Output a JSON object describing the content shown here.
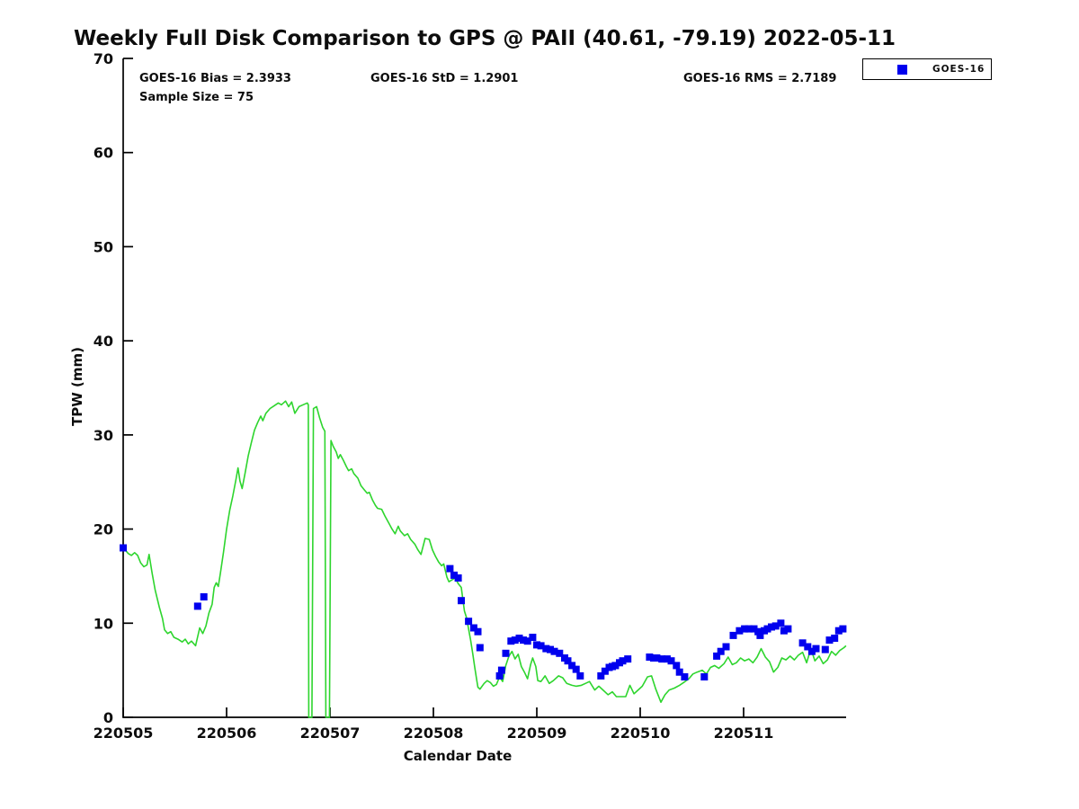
{
  "title": "Weekly Full Disk Comparison to GPS @ PAII (40.61, -79.19) 2022-05-11",
  "stats": {
    "bias": "GOES-16 Bias = 2.3933",
    "std": "GOES-16 StD = 1.2901",
    "rms": "GOES-16 RMS = 2.7189",
    "sample": "Sample Size = 75"
  },
  "legend": {
    "entries": [
      {
        "label": "GOES-16",
        "marker": "square-icon",
        "color": "#0000ee"
      }
    ]
  },
  "colors": {
    "gps_line": "#2ed52e",
    "goes_marker": "#0000ee",
    "axis": "#000000",
    "text": "#0d0d0d",
    "background": "#ffffff"
  },
  "chart_data": {
    "type": "line",
    "title": "Weekly Full Disk Comparison to GPS @ PAII (40.61, -79.19) 2022-05-11",
    "xlabel": "Calendar Date",
    "ylabel": "TPW (mm)",
    "ylim": [
      0,
      70
    ],
    "xlim": [
      4.98,
      12.0
    ],
    "grid": false,
    "legend_position": "top-right-outside",
    "y_ticks": [
      0,
      10,
      20,
      30,
      40,
      50,
      60,
      70
    ],
    "x_ticks": [
      {
        "value": 5,
        "label": "220505"
      },
      {
        "value": 6,
        "label": "220506"
      },
      {
        "value": 7,
        "label": "220507"
      },
      {
        "value": 8,
        "label": "220508"
      },
      {
        "value": 9,
        "label": "220509"
      },
      {
        "value": 10,
        "label": "220510"
      },
      {
        "value": 11,
        "label": "220511"
      }
    ],
    "series": [
      {
        "name": "GPS TPW",
        "type": "line",
        "color": "#2ed52e",
        "points": [
          [
            5.01,
            17.9
          ],
          [
            5.05,
            17.4
          ],
          [
            5.08,
            17.2
          ],
          [
            5.11,
            17.5
          ],
          [
            5.14,
            17.2
          ],
          [
            5.17,
            16.4
          ],
          [
            5.2,
            16.0
          ],
          [
            5.23,
            16.2
          ],
          [
            5.25,
            17.3
          ],
          [
            5.28,
            15.3
          ],
          [
            5.31,
            13.5
          ],
          [
            5.35,
            11.7
          ],
          [
            5.38,
            10.5
          ],
          [
            5.4,
            9.3
          ],
          [
            5.43,
            8.9
          ],
          [
            5.46,
            9.1
          ],
          [
            5.49,
            8.5
          ],
          [
            5.53,
            8.3
          ],
          [
            5.57,
            8.0
          ],
          [
            5.6,
            8.3
          ],
          [
            5.63,
            7.8
          ],
          [
            5.66,
            8.1
          ],
          [
            5.7,
            7.6
          ],
          [
            5.74,
            9.5
          ],
          [
            5.77,
            8.9
          ],
          [
            5.8,
            9.7
          ],
          [
            5.83,
            11.1
          ],
          [
            5.86,
            12.0
          ],
          [
            5.88,
            13.8
          ],
          [
            5.9,
            14.3
          ],
          [
            5.92,
            13.9
          ],
          [
            5.94,
            15.3
          ],
          [
            5.97,
            17.5
          ],
          [
            6.0,
            20.0
          ],
          [
            6.03,
            22.0
          ],
          [
            6.06,
            23.5
          ],
          [
            6.09,
            25.2
          ],
          [
            6.11,
            26.5
          ],
          [
            6.13,
            25.1
          ],
          [
            6.15,
            24.3
          ],
          [
            6.18,
            26.0
          ],
          [
            6.21,
            27.8
          ],
          [
            6.24,
            29.2
          ],
          [
            6.27,
            30.5
          ],
          [
            6.3,
            31.3
          ],
          [
            6.33,
            32.0
          ],
          [
            6.35,
            31.5
          ],
          [
            6.38,
            32.3
          ],
          [
            6.42,
            32.8
          ],
          [
            6.46,
            33.1
          ],
          [
            6.5,
            33.4
          ],
          [
            6.53,
            33.2
          ],
          [
            6.57,
            33.6
          ],
          [
            6.6,
            33.0
          ],
          [
            6.63,
            33.5
          ],
          [
            6.66,
            32.3
          ],
          [
            6.7,
            33.0
          ],
          [
            6.74,
            33.2
          ],
          [
            6.78,
            33.4
          ],
          [
            6.79,
            33.2
          ],
          [
            6.795,
            0
          ],
          [
            6.825,
            0
          ],
          [
            6.84,
            32.8
          ],
          [
            6.87,
            33.0
          ],
          [
            6.9,
            31.8
          ],
          [
            6.93,
            30.8
          ],
          [
            6.95,
            30.4
          ],
          [
            6.96,
            0
          ],
          [
            6.995,
            0
          ],
          [
            7.01,
            29.4
          ],
          [
            7.03,
            28.8
          ],
          [
            7.06,
            28.2
          ],
          [
            7.08,
            27.5
          ],
          [
            7.1,
            27.9
          ],
          [
            7.13,
            27.3
          ],
          [
            7.16,
            26.6
          ],
          [
            7.18,
            26.2
          ],
          [
            7.21,
            26.4
          ],
          [
            7.23,
            25.9
          ],
          [
            7.27,
            25.4
          ],
          [
            7.3,
            24.6
          ],
          [
            7.33,
            24.2
          ],
          [
            7.36,
            23.8
          ],
          [
            7.38,
            23.9
          ],
          [
            7.41,
            23.1
          ],
          [
            7.44,
            22.5
          ],
          [
            7.46,
            22.2
          ],
          [
            7.5,
            22.1
          ],
          [
            7.53,
            21.4
          ],
          [
            7.57,
            20.6
          ],
          [
            7.6,
            20.0
          ],
          [
            7.63,
            19.5
          ],
          [
            7.66,
            20.3
          ],
          [
            7.68,
            19.8
          ],
          [
            7.72,
            19.3
          ],
          [
            7.75,
            19.5
          ],
          [
            7.78,
            18.9
          ],
          [
            7.82,
            18.4
          ],
          [
            7.85,
            17.8
          ],
          [
            7.88,
            17.3
          ],
          [
            7.92,
            19.0
          ],
          [
            7.96,
            18.9
          ],
          [
            7.99,
            17.8
          ],
          [
            8.02,
            17.1
          ],
          [
            8.05,
            16.5
          ],
          [
            8.08,
            16.1
          ],
          [
            8.1,
            16.3
          ],
          [
            8.13,
            14.9
          ],
          [
            8.15,
            14.4
          ],
          [
            8.18,
            14.6
          ],
          [
            8.21,
            14.8
          ],
          [
            8.24,
            14.2
          ],
          [
            8.27,
            13.8
          ],
          [
            8.3,
            11.3
          ],
          [
            8.32,
            10.6
          ],
          [
            8.34,
            9.4
          ],
          [
            8.36,
            8.2
          ],
          [
            8.38,
            6.8
          ],
          [
            8.4,
            5.3
          ],
          [
            8.42,
            3.9
          ],
          [
            8.43,
            3.2
          ],
          [
            8.45,
            3.0
          ],
          [
            8.49,
            3.6
          ],
          [
            8.52,
            3.9
          ],
          [
            8.55,
            3.7
          ],
          [
            8.58,
            3.3
          ],
          [
            8.61,
            3.5
          ],
          [
            8.64,
            4.3
          ],
          [
            8.67,
            3.8
          ],
          [
            8.7,
            5.5
          ],
          [
            8.73,
            6.5
          ],
          [
            8.76,
            7.0
          ],
          [
            8.79,
            6.2
          ],
          [
            8.82,
            6.7
          ],
          [
            8.85,
            5.4
          ],
          [
            8.88,
            4.8
          ],
          [
            8.91,
            4.1
          ],
          [
            8.94,
            5.6
          ],
          [
            8.96,
            6.3
          ],
          [
            8.99,
            5.4
          ],
          [
            9.01,
            3.9
          ],
          [
            9.04,
            3.8
          ],
          [
            9.08,
            4.4
          ],
          [
            9.12,
            3.6
          ],
          [
            9.16,
            3.9
          ],
          [
            9.21,
            4.4
          ],
          [
            9.25,
            4.2
          ],
          [
            9.29,
            3.6
          ],
          [
            9.34,
            3.4
          ],
          [
            9.38,
            3.3
          ],
          [
            9.43,
            3.4
          ],
          [
            9.47,
            3.6
          ],
          [
            9.51,
            3.8
          ],
          [
            9.56,
            2.9
          ],
          [
            9.6,
            3.3
          ],
          [
            9.64,
            2.9
          ],
          [
            9.69,
            2.4
          ],
          [
            9.73,
            2.7
          ],
          [
            9.77,
            2.2
          ],
          [
            9.86,
            2.2
          ],
          [
            9.9,
            3.4
          ],
          [
            9.94,
            2.5
          ],
          [
            9.98,
            2.9
          ],
          [
            10.02,
            3.3
          ],
          [
            10.07,
            4.3
          ],
          [
            10.11,
            4.4
          ],
          [
            10.15,
            3.0
          ],
          [
            10.2,
            1.6
          ],
          [
            10.24,
            2.4
          ],
          [
            10.28,
            2.9
          ],
          [
            10.33,
            3.1
          ],
          [
            10.38,
            3.4
          ],
          [
            10.42,
            3.7
          ],
          [
            10.47,
            4.1
          ],
          [
            10.51,
            4.6
          ],
          [
            10.55,
            4.8
          ],
          [
            10.6,
            5.0
          ],
          [
            10.64,
            4.6
          ],
          [
            10.68,
            5.3
          ],
          [
            10.72,
            5.5
          ],
          [
            10.76,
            5.2
          ],
          [
            10.81,
            5.7
          ],
          [
            10.85,
            6.4
          ],
          [
            10.89,
            5.6
          ],
          [
            10.93,
            5.8
          ],
          [
            10.97,
            6.3
          ],
          [
            11.01,
            6.0
          ],
          [
            11.05,
            6.2
          ],
          [
            11.09,
            5.8
          ],
          [
            11.13,
            6.4
          ],
          [
            11.17,
            7.3
          ],
          [
            11.21,
            6.4
          ],
          [
            11.25,
            5.9
          ],
          [
            11.29,
            4.8
          ],
          [
            11.33,
            5.3
          ],
          [
            11.37,
            6.3
          ],
          [
            11.41,
            6.1
          ],
          [
            11.45,
            6.5
          ],
          [
            11.49,
            6.1
          ],
          [
            11.53,
            6.6
          ],
          [
            11.57,
            6.9
          ],
          [
            11.61,
            5.8
          ],
          [
            11.65,
            7.3
          ],
          [
            11.69,
            6.0
          ],
          [
            11.73,
            6.5
          ],
          [
            11.77,
            5.7
          ],
          [
            11.81,
            6.1
          ],
          [
            11.85,
            7.0
          ],
          [
            11.89,
            6.6
          ],
          [
            11.93,
            7.1
          ],
          [
            11.97,
            7.4
          ],
          [
            11.99,
            7.6
          ]
        ]
      },
      {
        "name": "GOES-16",
        "type": "scatter",
        "marker": "square",
        "marker_size": 8,
        "color": "#0000ee",
        "points": [
          [
            5.0,
            18.0
          ],
          [
            5.72,
            11.8
          ],
          [
            5.78,
            12.8
          ],
          [
            8.16,
            15.8
          ],
          [
            8.2,
            15.1
          ],
          [
            8.24,
            14.8
          ],
          [
            8.27,
            12.4
          ],
          [
            8.34,
            10.2
          ],
          [
            8.39,
            9.5
          ],
          [
            8.43,
            9.1
          ],
          [
            8.45,
            7.4
          ],
          [
            8.64,
            4.4
          ],
          [
            8.66,
            5.0
          ],
          [
            8.7,
            6.8
          ],
          [
            8.75,
            8.1
          ],
          [
            8.79,
            8.2
          ],
          [
            8.83,
            8.4
          ],
          [
            8.87,
            8.2
          ],
          [
            8.91,
            8.1
          ],
          [
            8.96,
            8.5
          ],
          [
            9.0,
            7.7
          ],
          [
            9.04,
            7.6
          ],
          [
            9.09,
            7.3
          ],
          [
            9.13,
            7.2
          ],
          [
            9.17,
            7.0
          ],
          [
            9.22,
            6.8
          ],
          [
            9.27,
            6.3
          ],
          [
            9.3,
            6.0
          ],
          [
            9.34,
            5.5
          ],
          [
            9.38,
            5.1
          ],
          [
            9.42,
            4.4
          ],
          [
            9.62,
            4.4
          ],
          [
            9.66,
            4.9
          ],
          [
            9.7,
            5.3
          ],
          [
            9.73,
            5.4
          ],
          [
            9.76,
            5.5
          ],
          [
            9.8,
            5.8
          ],
          [
            9.83,
            6.0
          ],
          [
            9.88,
            6.2
          ],
          [
            10.09,
            6.4
          ],
          [
            10.13,
            6.3
          ],
          [
            10.16,
            6.3
          ],
          [
            10.21,
            6.2
          ],
          [
            10.26,
            6.2
          ],
          [
            10.3,
            6.0
          ],
          [
            10.35,
            5.5
          ],
          [
            10.38,
            4.8
          ],
          [
            10.43,
            4.3
          ],
          [
            10.62,
            4.3
          ],
          [
            10.74,
            6.5
          ],
          [
            10.78,
            7.0
          ],
          [
            10.83,
            7.5
          ],
          [
            10.9,
            8.7
          ],
          [
            10.96,
            9.2
          ],
          [
            11.01,
            9.4
          ],
          [
            11.05,
            9.4
          ],
          [
            11.1,
            9.4
          ],
          [
            11.14,
            9.1
          ],
          [
            11.16,
            8.7
          ],
          [
            11.2,
            9.2
          ],
          [
            11.23,
            9.4
          ],
          [
            11.27,
            9.6
          ],
          [
            11.31,
            9.7
          ],
          [
            11.36,
            10.0
          ],
          [
            11.39,
            9.2
          ],
          [
            11.43,
            9.4
          ],
          [
            11.57,
            7.9
          ],
          [
            11.62,
            7.5
          ],
          [
            11.66,
            7.0
          ],
          [
            11.7,
            7.3
          ],
          [
            11.79,
            7.2
          ],
          [
            11.83,
            8.2
          ],
          [
            11.88,
            8.4
          ],
          [
            11.92,
            9.2
          ],
          [
            11.96,
            9.4
          ]
        ]
      }
    ]
  }
}
